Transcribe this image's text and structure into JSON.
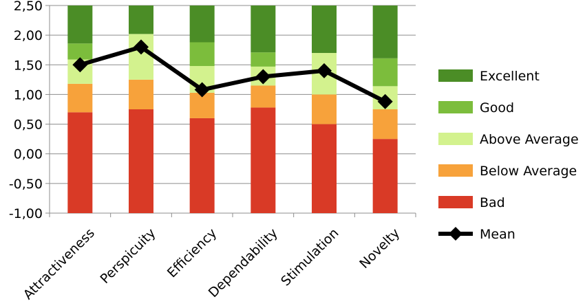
{
  "chart_data": {
    "type": "bar",
    "stacked": true,
    "categories": [
      "Attractiveness",
      "Perspicuity",
      "Efficiency",
      "Dependability",
      "Stimulation",
      "Novelty"
    ],
    "ylim": [
      -1.0,
      2.5
    ],
    "yticks": [
      "2,50",
      "2,00",
      "1,50",
      "1,00",
      "0,50",
      "0,00",
      "-0,50",
      "-1,00"
    ],
    "ytick_values": [
      2.5,
      2.0,
      1.5,
      1.0,
      0.5,
      0.0,
      -0.5,
      -1.0
    ],
    "grid": true,
    "legend_position": "right",
    "bands": [
      {
        "name": "Bad",
        "color": "#d93a26",
        "upper": [
          0.7,
          0.75,
          0.6,
          0.78,
          0.5,
          0.25
        ]
      },
      {
        "name": "Below Average",
        "color": "#f7a23b",
        "upper": [
          1.18,
          1.25,
          1.03,
          1.15,
          1.0,
          0.75
        ]
      },
      {
        "name": "Above Average",
        "color": "#d3f28e",
        "upper": [
          1.59,
          2.02,
          1.48,
          1.47,
          1.7,
          1.14
        ]
      },
      {
        "name": "Good",
        "color": "#7cbd3c",
        "upper": [
          1.86,
          2.02,
          1.88,
          1.71,
          1.7,
          1.61
        ]
      },
      {
        "name": "Excellent",
        "color": "#4b8d26",
        "upper": [
          2.5,
          2.5,
          2.5,
          2.5,
          2.5,
          2.5
        ]
      }
    ],
    "legend_order": [
      "Excellent",
      "Good",
      "Above Average",
      "Below Average",
      "Bad"
    ],
    "series": [
      {
        "name": "Mean",
        "type": "line",
        "color": "#000000",
        "values": [
          1.5,
          1.8,
          1.08,
          1.3,
          1.4,
          0.88
        ]
      }
    ]
  }
}
